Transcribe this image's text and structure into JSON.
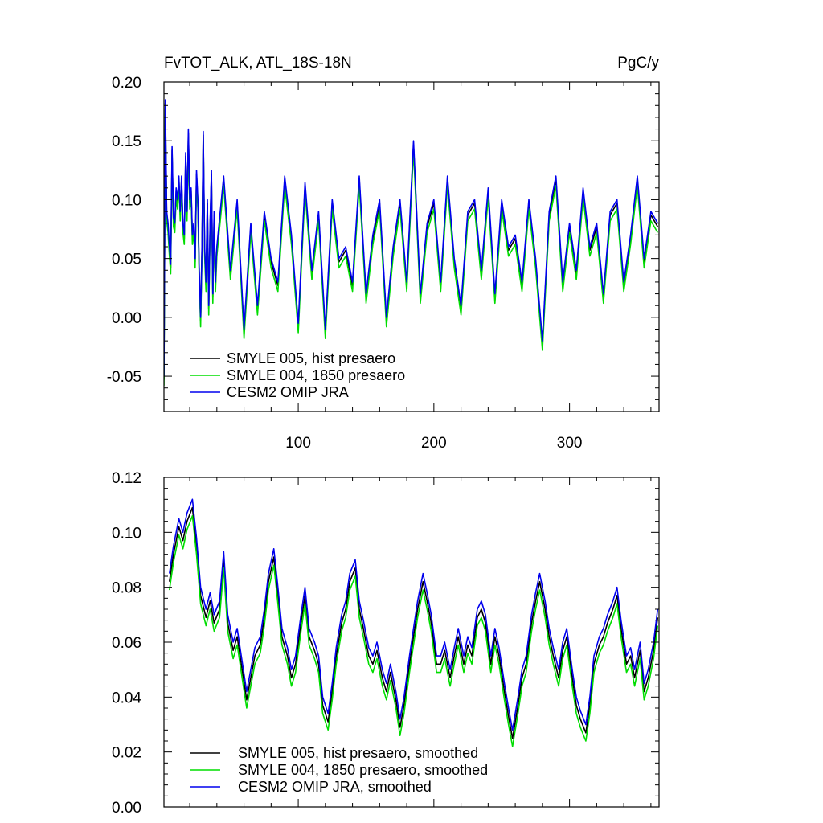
{
  "figure": {
    "title_left": "FvTOT_ALK, ATL_18S-18N",
    "title_right": "PgC/y"
  },
  "colors": {
    "smyle005": "#000000",
    "smyle004": "#00dd00",
    "omip": "#0000ee"
  },
  "chart_data": [
    {
      "type": "line",
      "xlabel": "",
      "ylabel": "",
      "xlim": [
        1,
        366
      ],
      "ylim": [
        -0.08,
        0.2
      ],
      "xticks": [
        100,
        200,
        300
      ],
      "yticks": [
        -0.05,
        0.0,
        0.05,
        0.1,
        0.15,
        0.2
      ],
      "ytick_labels": [
        "-0.05",
        "0.00",
        "0.05",
        "0.10",
        "0.15",
        "0.20"
      ],
      "grid": false,
      "legend_position": "bottom-left",
      "series": [
        {
          "name": "SMYLE 005, hist presaero",
          "color_key": "smyle005"
        },
        {
          "name": "SMYLE 004, 1850 presaero",
          "color_key": "smyle004"
        },
        {
          "name": "CESM2 OMIP JRA",
          "color_key": "omip"
        }
      ],
      "x": [
        1,
        2,
        3,
        4,
        5,
        6,
        7,
        8,
        9,
        10,
        11,
        12,
        13,
        14,
        15,
        16,
        17,
        18,
        19,
        20,
        21,
        22,
        23,
        24,
        25,
        26,
        27,
        28,
        29,
        30,
        31,
        32,
        33,
        34,
        35,
        36,
        37,
        38,
        39,
        40,
        45,
        50,
        55,
        60,
        65,
        70,
        75,
        80,
        85,
        90,
        95,
        100,
        105,
        110,
        115,
        120,
        125,
        130,
        135,
        140,
        145,
        150,
        155,
        160,
        165,
        170,
        175,
        180,
        185,
        190,
        195,
        200,
        205,
        210,
        215,
        220,
        225,
        230,
        235,
        240,
        245,
        250,
        255,
        260,
        265,
        270,
        275,
        280,
        285,
        290,
        295,
        300,
        305,
        310,
        315,
        320,
        325,
        330,
        335,
        340,
        345,
        350,
        355,
        360,
        365
      ],
      "omip_values": [
        -0.05,
        0.185,
        0.09,
        0.08,
        0.06,
        0.045,
        0.145,
        0.085,
        0.08,
        0.11,
        0.1,
        0.12,
        0.09,
        0.12,
        0.08,
        0.07,
        0.14,
        0.09,
        0.16,
        0.1,
        0.11,
        0.07,
        0.08,
        0.05,
        0.125,
        0.1,
        0.04,
        0.0,
        0.06,
        0.158,
        0.06,
        0.03,
        0.1,
        0.01,
        0.08,
        0.125,
        0.02,
        0.09,
        0.03,
        0.06,
        0.12,
        0.04,
        0.1,
        -0.01,
        0.08,
        0.01,
        0.09,
        0.05,
        0.03,
        0.12,
        0.07,
        -0.005,
        0.115,
        0.04,
        0.09,
        -0.01,
        0.1,
        0.05,
        0.06,
        0.03,
        0.12,
        0.02,
        0.07,
        0.1,
        0.0,
        0.06,
        0.1,
        0.03,
        0.15,
        0.02,
        0.08,
        0.1,
        0.03,
        0.12,
        0.05,
        0.01,
        0.09,
        0.1,
        0.04,
        0.11,
        0.02,
        0.1,
        0.06,
        0.07,
        0.03,
        0.1,
        0.05,
        -0.02,
        0.09,
        0.12,
        0.03,
        0.08,
        0.04,
        0.11,
        0.06,
        0.08,
        0.02,
        0.09,
        0.1,
        0.03,
        0.07,
        0.12,
        0.05,
        0.09,
        0.08
      ],
      "green_offset": -0.008,
      "black_offset": -0.003
    },
    {
      "type": "line",
      "xlabel": "",
      "ylabel": "",
      "xlim": [
        1,
        366
      ],
      "ylim": [
        0.0,
        0.12
      ],
      "xticks": [
        100,
        200,
        300
      ],
      "yticks": [
        0.0,
        0.02,
        0.04,
        0.06,
        0.08,
        0.1,
        0.12
      ],
      "ytick_labels": [
        "0.00",
        "0.02",
        "0.04",
        "0.06",
        "0.08",
        "0.10",
        "0.12"
      ],
      "grid": false,
      "legend_position": "bottom-left",
      "series": [
        {
          "name": "SMYLE 005, hist presaero, smoothed",
          "color_key": "smyle005"
        },
        {
          "name": "SMYLE 004, 1850 presaero, smoothed",
          "color_key": "smyle004"
        },
        {
          "name": "CESM2 OMIP JRA, smoothed",
          "color_key": "omip"
        }
      ],
      "x": [
        5,
        8,
        12,
        15,
        18,
        22,
        25,
        28,
        32,
        35,
        38,
        42,
        45,
        48,
        52,
        55,
        58,
        62,
        65,
        68,
        72,
        75,
        78,
        82,
        85,
        88,
        92,
        95,
        98,
        102,
        105,
        108,
        112,
        115,
        118,
        122,
        125,
        128,
        132,
        135,
        138,
        142,
        145,
        148,
        152,
        155,
        158,
        162,
        165,
        168,
        172,
        175,
        178,
        182,
        185,
        188,
        192,
        195,
        198,
        202,
        205,
        208,
        212,
        215,
        218,
        222,
        225,
        228,
        232,
        235,
        238,
        242,
        245,
        248,
        252,
        255,
        258,
        262,
        265,
        268,
        272,
        275,
        278,
        282,
        285,
        288,
        292,
        295,
        298,
        302,
        305,
        308,
        312,
        315,
        318,
        322,
        325,
        328,
        332,
        335,
        338,
        342,
        345,
        348,
        352,
        355,
        358,
        362,
        365
      ],
      "omip_values": [
        0.085,
        0.095,
        0.105,
        0.1,
        0.107,
        0.112,
        0.098,
        0.08,
        0.072,
        0.078,
        0.07,
        0.075,
        0.093,
        0.07,
        0.06,
        0.065,
        0.055,
        0.042,
        0.05,
        0.058,
        0.062,
        0.072,
        0.085,
        0.094,
        0.08,
        0.065,
        0.058,
        0.05,
        0.055,
        0.07,
        0.08,
        0.065,
        0.06,
        0.055,
        0.04,
        0.034,
        0.045,
        0.058,
        0.07,
        0.075,
        0.085,
        0.09,
        0.075,
        0.068,
        0.058,
        0.055,
        0.06,
        0.05,
        0.045,
        0.052,
        0.042,
        0.032,
        0.04,
        0.055,
        0.065,
        0.075,
        0.085,
        0.078,
        0.07,
        0.055,
        0.055,
        0.06,
        0.05,
        0.058,
        0.065,
        0.055,
        0.062,
        0.058,
        0.072,
        0.075,
        0.07,
        0.055,
        0.065,
        0.058,
        0.045,
        0.036,
        0.028,
        0.04,
        0.05,
        0.055,
        0.07,
        0.078,
        0.085,
        0.075,
        0.065,
        0.058,
        0.05,
        0.06,
        0.065,
        0.05,
        0.04,
        0.035,
        0.03,
        0.04,
        0.055,
        0.062,
        0.065,
        0.07,
        0.075,
        0.08,
        0.068,
        0.055,
        0.058,
        0.05,
        0.06,
        0.045,
        0.05,
        0.06,
        0.072
      ],
      "green_offset": -0.006,
      "black_offset": -0.003
    }
  ],
  "legends": [
    [
      "SMYLE 005, hist presaero",
      "SMYLE 004, 1850 presaero",
      "CESM2 OMIP JRA"
    ],
    [
      "SMYLE 005, hist presaero, smoothed",
      "SMYLE 004, 1850 presaero, smoothed",
      "CESM2 OMIP JRA, smoothed"
    ]
  ]
}
